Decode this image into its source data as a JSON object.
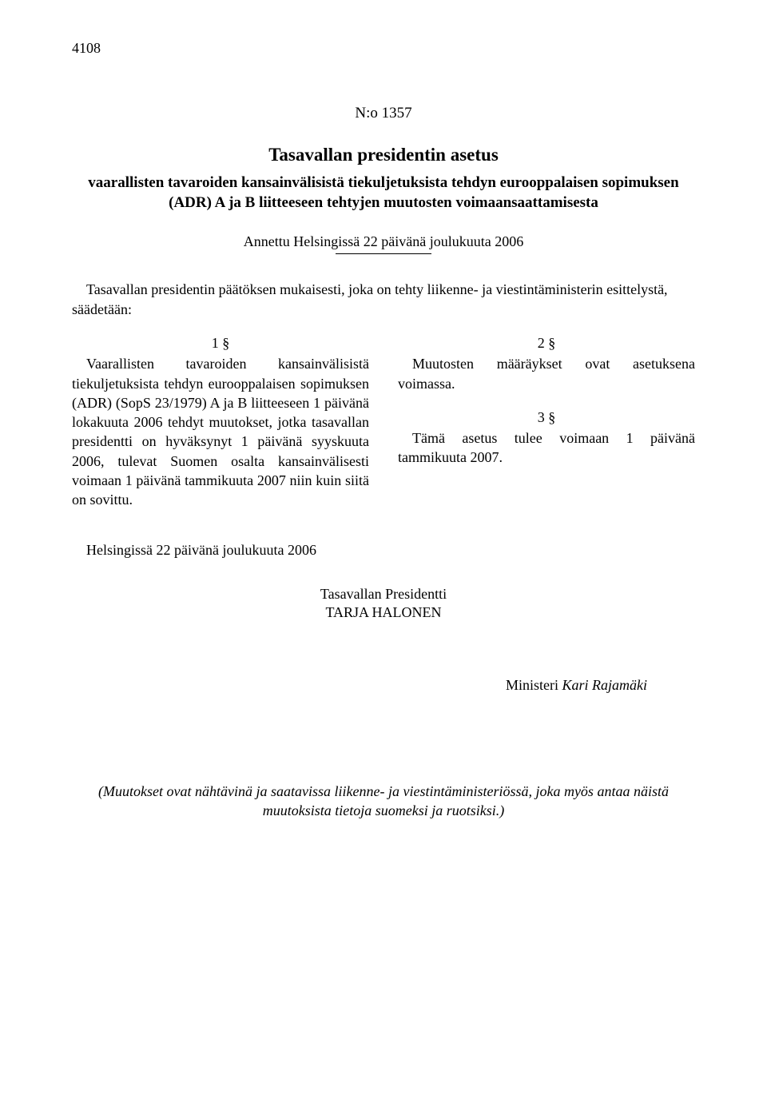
{
  "page_number": "4108",
  "doc_number": "N:o 1357",
  "title": "Tasavallan presidentin asetus",
  "subtitle": "vaarallisten tavaroiden kansainvälisistä tiekuljetuksista tehdyn eurooppalaisen sopimuksen (ADR) A ja B liitteeseen tehtyjen muutosten voimaansaattamisesta",
  "given": "Annettu Helsingissä 22 päivänä joulukuuta 2006",
  "preamble": "Tasavallan presidentin päätöksen mukaisesti, joka on tehty liikenne- ja viestintäministerin esittelystä, säädetään:",
  "sections": {
    "s1_num": "1 §",
    "s1_text": "Vaarallisten tavaroiden kansainvälisistä tiekuljetuksista tehdyn eurooppalaisen sopimuksen (ADR) (SopS 23/1979) A ja B liitteeseen 1 päivänä lokakuuta 2006 tehdyt muutokset, jotka tasavallan presidentti on hyväksynyt 1 päivänä syyskuuta 2006, tulevat Suomen osalta kansainvälisesti voimaan 1 päivänä tammikuuta 2007 niin kuin siitä on sovittu.",
    "s2_num": "2 §",
    "s2_text": "Muutosten määräykset ovat asetuksena voimassa.",
    "s3_num": "3 §",
    "s3_text": "Tämä asetus tulee voimaan 1 päivänä tammikuuta 2007."
  },
  "signed_place": "Helsingissä 22 päivänä joulukuuta 2006",
  "sign_title": "Tasavallan Presidentti",
  "sign_name": "TARJA HALONEN",
  "minister_label": "Ministeri ",
  "minister_name": "Kari Rajamäki",
  "footnote": "(Muutokset ovat nähtävinä ja saatavissa liikenne- ja viestintäministeriössä, joka myös antaa näistä muutoksista tietoja suomeksi ja ruotsiksi.)"
}
